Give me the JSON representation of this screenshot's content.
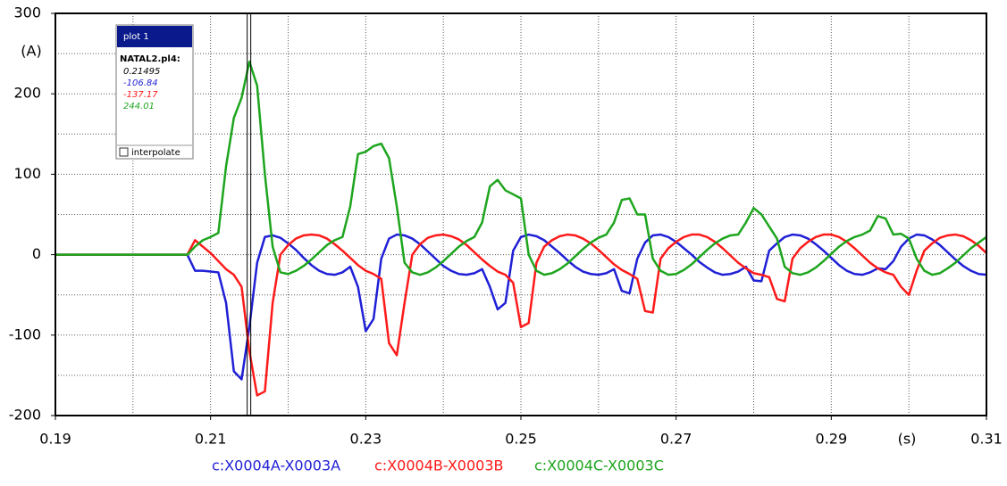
{
  "chart_data": {
    "type": "line",
    "x_label": "(s)",
    "y_label": "(A)",
    "xlim": [
      0.19,
      0.31
    ],
    "ylim": [
      -200,
      300
    ],
    "xticks": [
      0.19,
      0.21,
      0.23,
      0.25,
      0.27,
      0.29,
      0.31
    ],
    "minor_xticks": [
      0.2,
      0.22,
      0.24,
      0.26,
      0.28,
      0.3
    ],
    "yticks": [
      -200,
      -100,
      0,
      100,
      200,
      300
    ],
    "minor_yticks": [
      -150,
      -50,
      50,
      150,
      250
    ],
    "grid": true,
    "legend": "bottom",
    "x": [
      0.19,
      0.207,
      0.208,
      0.209,
      0.21,
      0.211,
      0.212,
      0.213,
      0.214,
      0.215,
      0.216,
      0.217,
      0.218,
      0.219,
      0.22,
      0.221,
      0.222,
      0.223,
      0.224,
      0.225,
      0.226,
      0.227,
      0.228,
      0.229,
      0.23,
      0.231,
      0.232,
      0.233,
      0.234,
      0.235,
      0.236,
      0.237,
      0.238,
      0.239,
      0.24,
      0.241,
      0.242,
      0.243,
      0.244,
      0.245,
      0.246,
      0.247,
      0.248,
      0.249,
      0.25,
      0.251,
      0.252,
      0.253,
      0.254,
      0.255,
      0.256,
      0.257,
      0.258,
      0.259,
      0.26,
      0.261,
      0.262,
      0.263,
      0.264,
      0.265,
      0.266,
      0.267,
      0.268,
      0.269,
      0.27,
      0.271,
      0.272,
      0.273,
      0.274,
      0.275,
      0.276,
      0.277,
      0.278,
      0.279,
      0.28,
      0.281,
      0.282,
      0.283,
      0.284,
      0.285,
      0.286,
      0.287,
      0.288,
      0.289,
      0.29,
      0.291,
      0.292,
      0.293,
      0.294,
      0.295,
      0.296,
      0.297,
      0.298,
      0.299,
      0.3,
      0.301,
      0.302,
      0.303,
      0.304,
      0.305,
      0.306,
      0.307,
      0.308,
      0.309,
      0.31
    ],
    "series": [
      {
        "name": "c:X0004A-X0003A",
        "color": "#1f1fd6",
        "values": [
          0,
          0,
          -20,
          -20,
          -21,
          -22,
          -60,
          -145,
          -155,
          -90,
          -10,
          22,
          24,
          21,
          14,
          6,
          -4,
          -13,
          -20,
          -24,
          -25,
          -22,
          -15,
          -40,
          -95,
          -80,
          -5,
          20,
          25,
          24,
          20,
          13,
          4,
          -5,
          -14,
          -20,
          -24,
          -25,
          -23,
          -18,
          -40,
          -68,
          -60,
          5,
          22,
          25,
          23,
          18,
          10,
          2,
          -7,
          -15,
          -21,
          -24,
          -25,
          -23,
          -18,
          -45,
          -48,
          -5,
          15,
          24,
          25,
          22,
          16,
          8,
          0,
          -9,
          -16,
          -22,
          -25,
          -24,
          -21,
          -15,
          -32,
          -33,
          5,
          14,
          22,
          25,
          24,
          20,
          13,
          5,
          -4,
          -13,
          -20,
          -24,
          -25,
          -22,
          -17,
          -18,
          -8,
          10,
          20,
          25,
          24,
          19,
          12,
          3,
          -6,
          -14,
          -20,
          -24,
          -25
        ]
      },
      {
        "name": "c:X0004B-X0003B",
        "color": "#ff1a1a",
        "values": [
          0,
          0,
          18,
          10,
          2,
          -8,
          -18,
          -25,
          -40,
          -120,
          -175,
          -170,
          -60,
          0,
          12,
          20,
          24,
          25,
          24,
          20,
          13,
          5,
          -4,
          -13,
          -20,
          -24,
          -30,
          -110,
          -125,
          -60,
          0,
          13,
          21,
          24,
          25,
          23,
          19,
          12,
          3,
          -6,
          -14,
          -21,
          -25,
          -35,
          -90,
          -85,
          -10,
          10,
          18,
          23,
          25,
          24,
          20,
          14,
          6,
          -3,
          -12,
          -19,
          -24,
          -30,
          -70,
          -72,
          -5,
          8,
          16,
          22,
          25,
          25,
          22,
          16,
          8,
          -1,
          -10,
          -17,
          -23,
          -25,
          -28,
          -55,
          -58,
          -5,
          8,
          16,
          22,
          25,
          25,
          22,
          16,
          8,
          -1,
          -10,
          -17,
          -22,
          -25,
          -40,
          -50,
          -20,
          5,
          14,
          21,
          24,
          25,
          23,
          18,
          11,
          2
        ]
      },
      {
        "name": "c:X0004C-X0003C",
        "color": "#1ea51e",
        "values": [
          0,
          0,
          10,
          18,
          22,
          27,
          110,
          170,
          195,
          240,
          210,
          100,
          10,
          -22,
          -24,
          -20,
          -14,
          -6,
          3,
          12,
          18,
          22,
          60,
          125,
          128,
          135,
          138,
          120,
          60,
          -10,
          -22,
          -25,
          -22,
          -16,
          -8,
          1,
          10,
          17,
          22,
          40,
          85,
          93,
          80,
          75,
          70,
          0,
          -20,
          -25,
          -23,
          -18,
          -11,
          -2,
          7,
          15,
          21,
          25,
          40,
          68,
          70,
          50,
          50,
          -5,
          -20,
          -25,
          -24,
          -19,
          -12,
          -3,
          6,
          14,
          20,
          24,
          25,
          40,
          58,
          50,
          35,
          20,
          -15,
          -23,
          -25,
          -22,
          -16,
          -8,
          1,
          10,
          17,
          22,
          25,
          30,
          48,
          45,
          25,
          26,
          20,
          -5,
          -20,
          -25,
          -23,
          -17,
          -10,
          -1,
          8,
          15,
          22
        ]
      }
    ],
    "cursor": {
      "title": "plot 1",
      "file": "NATAL2.pl4:",
      "x": 0.21495,
      "readings": [
        -106.84,
        -137.17,
        244.01
      ],
      "checkbox_label": "interpolate"
    }
  }
}
